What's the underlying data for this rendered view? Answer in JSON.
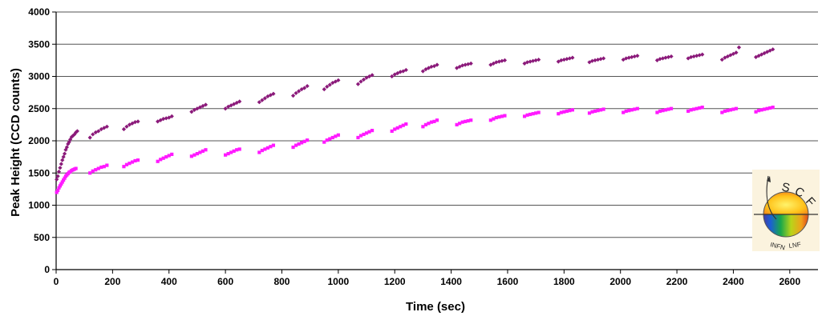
{
  "chart_data": {
    "type": "scatter",
    "title": "",
    "xlabel": "Time (sec)",
    "ylabel": "Peak Height (CCD counts)",
    "xlim": [
      0,
      2700
    ],
    "ylim": [
      0,
      4000
    ],
    "xticks": [
      0,
      200,
      400,
      600,
      800,
      1000,
      1200,
      1400,
      1600,
      1800,
      2000,
      2200,
      2400,
      2600
    ],
    "yticks": [
      0,
      500,
      1000,
      1500,
      2000,
      2500,
      3000,
      3500,
      4000
    ],
    "grid": "horizontal",
    "legend": "none",
    "series": [
      {
        "color": "#8b1a7a",
        "marker": "diamond",
        "points": [
          [
            2,
            1400
          ],
          [
            6,
            1450
          ],
          [
            10,
            1520
          ],
          [
            14,
            1580
          ],
          [
            18,
            1640
          ],
          [
            22,
            1700
          ],
          [
            26,
            1750
          ],
          [
            30,
            1800
          ],
          [
            34,
            1860
          ],
          [
            38,
            1900
          ],
          [
            42,
            1950
          ],
          [
            46,
            1980
          ],
          [
            50,
            2020
          ],
          [
            55,
            2060
          ],
          [
            60,
            2080
          ],
          [
            65,
            2100
          ],
          [
            70,
            2130
          ],
          [
            75,
            2150
          ],
          [
            120,
            2050
          ],
          [
            130,
            2100
          ],
          [
            140,
            2130
          ],
          [
            150,
            2150
          ],
          [
            160,
            2180
          ],
          [
            170,
            2200
          ],
          [
            180,
            2220
          ],
          [
            240,
            2180
          ],
          [
            250,
            2220
          ],
          [
            260,
            2250
          ],
          [
            270,
            2270
          ],
          [
            280,
            2290
          ],
          [
            290,
            2300
          ],
          [
            360,
            2300
          ],
          [
            370,
            2320
          ],
          [
            380,
            2340
          ],
          [
            390,
            2350
          ],
          [
            400,
            2360
          ],
          [
            410,
            2380
          ],
          [
            480,
            2450
          ],
          [
            490,
            2480
          ],
          [
            500,
            2500
          ],
          [
            510,
            2520
          ],
          [
            520,
            2540
          ],
          [
            530,
            2560
          ],
          [
            600,
            2500
          ],
          [
            610,
            2530
          ],
          [
            620,
            2550
          ],
          [
            630,
            2570
          ],
          [
            640,
            2590
          ],
          [
            650,
            2610
          ],
          [
            720,
            2600
          ],
          [
            730,
            2630
          ],
          [
            740,
            2660
          ],
          [
            750,
            2690
          ],
          [
            760,
            2710
          ],
          [
            770,
            2730
          ],
          [
            840,
            2700
          ],
          [
            850,
            2740
          ],
          [
            860,
            2770
          ],
          [
            870,
            2800
          ],
          [
            880,
            2820
          ],
          [
            890,
            2850
          ],
          [
            950,
            2800
          ],
          [
            960,
            2840
          ],
          [
            970,
            2870
          ],
          [
            980,
            2900
          ],
          [
            990,
            2920
          ],
          [
            1000,
            2940
          ],
          [
            1070,
            2880
          ],
          [
            1080,
            2920
          ],
          [
            1090,
            2950
          ],
          [
            1100,
            2980
          ],
          [
            1110,
            3000
          ],
          [
            1120,
            3020
          ],
          [
            1190,
            3000
          ],
          [
            1200,
            3030
          ],
          [
            1210,
            3050
          ],
          [
            1220,
            3070
          ],
          [
            1230,
            3080
          ],
          [
            1240,
            3100
          ],
          [
            1300,
            3080
          ],
          [
            1310,
            3110
          ],
          [
            1320,
            3130
          ],
          [
            1330,
            3150
          ],
          [
            1340,
            3160
          ],
          [
            1350,
            3180
          ],
          [
            1420,
            3130
          ],
          [
            1430,
            3150
          ],
          [
            1440,
            3170
          ],
          [
            1450,
            3180
          ],
          [
            1460,
            3190
          ],
          [
            1470,
            3200
          ],
          [
            1540,
            3180
          ],
          [
            1550,
            3200
          ],
          [
            1560,
            3220
          ],
          [
            1570,
            3230
          ],
          [
            1580,
            3240
          ],
          [
            1590,
            3250
          ],
          [
            1660,
            3200
          ],
          [
            1670,
            3220
          ],
          [
            1680,
            3230
          ],
          [
            1690,
            3240
          ],
          [
            1700,
            3250
          ],
          [
            1710,
            3260
          ],
          [
            1780,
            3230
          ],
          [
            1790,
            3250
          ],
          [
            1800,
            3260
          ],
          [
            1810,
            3270
          ],
          [
            1820,
            3280
          ],
          [
            1830,
            3290
          ],
          [
            1890,
            3220
          ],
          [
            1900,
            3240
          ],
          [
            1910,
            3250
          ],
          [
            1920,
            3260
          ],
          [
            1930,
            3270
          ],
          [
            1940,
            3280
          ],
          [
            2010,
            3260
          ],
          [
            2020,
            3280
          ],
          [
            2030,
            3290
          ],
          [
            2040,
            3300
          ],
          [
            2050,
            3310
          ],
          [
            2060,
            3320
          ],
          [
            2130,
            3250
          ],
          [
            2140,
            3270
          ],
          [
            2150,
            3280
          ],
          [
            2160,
            3290
          ],
          [
            2170,
            3300
          ],
          [
            2180,
            3310
          ],
          [
            2240,
            3280
          ],
          [
            2250,
            3300
          ],
          [
            2260,
            3310
          ],
          [
            2270,
            3320
          ],
          [
            2280,
            3330
          ],
          [
            2290,
            3340
          ],
          [
            2360,
            3260
          ],
          [
            2370,
            3290
          ],
          [
            2380,
            3310
          ],
          [
            2390,
            3330
          ],
          [
            2400,
            3350
          ],
          [
            2410,
            3370
          ],
          [
            2420,
            3450
          ],
          [
            2480,
            3300
          ],
          [
            2490,
            3320
          ],
          [
            2500,
            3340
          ],
          [
            2510,
            3360
          ],
          [
            2520,
            3380
          ],
          [
            2530,
            3400
          ],
          [
            2540,
            3420
          ]
        ]
      },
      {
        "color": "#ff1aff",
        "marker": "square",
        "points": [
          [
            2,
            1200
          ],
          [
            6,
            1230
          ],
          [
            10,
            1270
          ],
          [
            14,
            1300
          ],
          [
            18,
            1330
          ],
          [
            22,
            1360
          ],
          [
            26,
            1390
          ],
          [
            30,
            1420
          ],
          [
            34,
            1450
          ],
          [
            38,
            1470
          ],
          [
            42,
            1490
          ],
          [
            46,
            1510
          ],
          [
            50,
            1520
          ],
          [
            55,
            1540
          ],
          [
            60,
            1550
          ],
          [
            65,
            1560
          ],
          [
            70,
            1570
          ],
          [
            120,
            1500
          ],
          [
            130,
            1530
          ],
          [
            140,
            1550
          ],
          [
            150,
            1570
          ],
          [
            160,
            1590
          ],
          [
            170,
            1600
          ],
          [
            180,
            1620
          ],
          [
            240,
            1600
          ],
          [
            250,
            1630
          ],
          [
            260,
            1650
          ],
          [
            270,
            1670
          ],
          [
            280,
            1690
          ],
          [
            290,
            1700
          ],
          [
            360,
            1680
          ],
          [
            370,
            1710
          ],
          [
            380,
            1730
          ],
          [
            390,
            1750
          ],
          [
            400,
            1770
          ],
          [
            410,
            1790
          ],
          [
            480,
            1760
          ],
          [
            490,
            1780
          ],
          [
            500,
            1800
          ],
          [
            510,
            1820
          ],
          [
            520,
            1840
          ],
          [
            530,
            1860
          ],
          [
            600,
            1780
          ],
          [
            610,
            1800
          ],
          [
            620,
            1820
          ],
          [
            630,
            1840
          ],
          [
            640,
            1860
          ],
          [
            650,
            1870
          ],
          [
            720,
            1820
          ],
          [
            730,
            1850
          ],
          [
            740,
            1870
          ],
          [
            750,
            1890
          ],
          [
            760,
            1910
          ],
          [
            770,
            1930
          ],
          [
            840,
            1900
          ],
          [
            850,
            1930
          ],
          [
            860,
            1950
          ],
          [
            870,
            1970
          ],
          [
            880,
            1990
          ],
          [
            890,
            2010
          ],
          [
            950,
            1980
          ],
          [
            960,
            2010
          ],
          [
            970,
            2030
          ],
          [
            980,
            2050
          ],
          [
            990,
            2070
          ],
          [
            1000,
            2090
          ],
          [
            1070,
            2050
          ],
          [
            1080,
            2080
          ],
          [
            1090,
            2100
          ],
          [
            1100,
            2120
          ],
          [
            1110,
            2140
          ],
          [
            1120,
            2160
          ],
          [
            1190,
            2150
          ],
          [
            1200,
            2180
          ],
          [
            1210,
            2200
          ],
          [
            1220,
            2220
          ],
          [
            1230,
            2240
          ],
          [
            1240,
            2260
          ],
          [
            1300,
            2220
          ],
          [
            1310,
            2250
          ],
          [
            1320,
            2270
          ],
          [
            1330,
            2290
          ],
          [
            1340,
            2300
          ],
          [
            1350,
            2320
          ],
          [
            1420,
            2250
          ],
          [
            1430,
            2270
          ],
          [
            1440,
            2290
          ],
          [
            1450,
            2300
          ],
          [
            1460,
            2310
          ],
          [
            1470,
            2320
          ],
          [
            1540,
            2320
          ],
          [
            1550,
            2340
          ],
          [
            1560,
            2360
          ],
          [
            1570,
            2370
          ],
          [
            1580,
            2380
          ],
          [
            1590,
            2390
          ],
          [
            1660,
            2380
          ],
          [
            1670,
            2400
          ],
          [
            1680,
            2410
          ],
          [
            1690,
            2420
          ],
          [
            1700,
            2430
          ],
          [
            1710,
            2440
          ],
          [
            1780,
            2420
          ],
          [
            1790,
            2440
          ],
          [
            1800,
            2450
          ],
          [
            1810,
            2460
          ],
          [
            1820,
            2470
          ],
          [
            1830,
            2480
          ],
          [
            1890,
            2430
          ],
          [
            1900,
            2450
          ],
          [
            1910,
            2460
          ],
          [
            1920,
            2470
          ],
          [
            1930,
            2480
          ],
          [
            1940,
            2490
          ],
          [
            2010,
            2440
          ],
          [
            2020,
            2460
          ],
          [
            2030,
            2470
          ],
          [
            2040,
            2480
          ],
          [
            2050,
            2490
          ],
          [
            2060,
            2500
          ],
          [
            2130,
            2440
          ],
          [
            2140,
            2460
          ],
          [
            2150,
            2470
          ],
          [
            2160,
            2480
          ],
          [
            2170,
            2490
          ],
          [
            2180,
            2500
          ],
          [
            2240,
            2460
          ],
          [
            2250,
            2480
          ],
          [
            2260,
            2490
          ],
          [
            2270,
            2500
          ],
          [
            2280,
            2510
          ],
          [
            2290,
            2520
          ],
          [
            2360,
            2440
          ],
          [
            2370,
            2460
          ],
          [
            2380,
            2470
          ],
          [
            2390,
            2480
          ],
          [
            2400,
            2490
          ],
          [
            2410,
            2500
          ],
          [
            2480,
            2450
          ],
          [
            2490,
            2470
          ],
          [
            2500,
            2480
          ],
          [
            2510,
            2490
          ],
          [
            2520,
            2500
          ],
          [
            2530,
            2510
          ],
          [
            2540,
            2520
          ]
        ]
      }
    ]
  },
  "logo": {
    "letters": [
      "S",
      "C",
      "F"
    ],
    "caption_left": "INFN",
    "caption_right": "LNF"
  }
}
